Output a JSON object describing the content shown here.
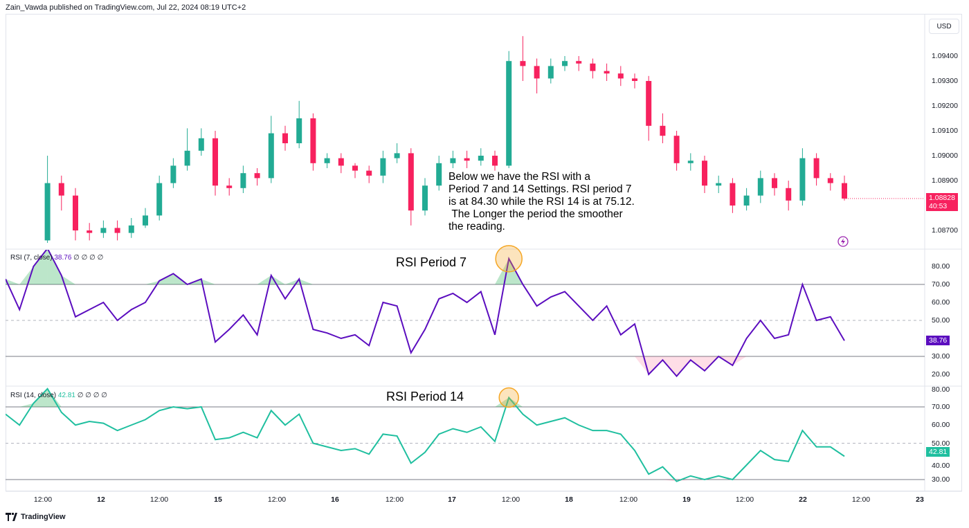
{
  "header": {
    "published": "Zain_Vawda published on TradingView.com, Jul 22, 2024 08:19 UTC+2"
  },
  "currency_button": "USD",
  "price_axis": {
    "ticks": [
      "1.09400",
      "1.09300",
      "1.09200",
      "1.09100",
      "1.09000",
      "1.08900",
      "1.08700"
    ],
    "last_price": "1.08828",
    "countdown": "40:53",
    "last_color": "#f7215e"
  },
  "annotation": "Below we have the RSI with a\nPeriod 7 and 14 Settings. RSI period 7\nis at 84.30 while the RSI 14 is at 75.12.\n The Longer the period the smoother\nthe reading.",
  "colors": {
    "up": "#22ab94",
    "down": "#f7215e",
    "rsi7": "#5b0dbf",
    "rsi14": "#1fbf9f",
    "highlight": "#f5a623"
  },
  "rsi7": {
    "legend": "RSI (7, close)",
    "value": "38.76",
    "zeros": "∅ ∅ ∅ ∅",
    "title": "RSI Period 7",
    "ticks": [
      "80.00",
      "70.00",
      "60.00",
      "50.00",
      "30.00",
      "20.00"
    ]
  },
  "rsi14": {
    "legend": "RSI (14, close)",
    "value": "42.81",
    "zeros": "∅ ∅ ∅ ∅",
    "title": "RSI Period 14",
    "ticks": [
      "80.00",
      "70.00",
      "60.00",
      "50.00",
      "40.00",
      "30.00"
    ]
  },
  "time_axis": [
    "12:00",
    "12",
    "12:00",
    "15",
    "12:00",
    "16",
    "12:00",
    "17",
    "12:00",
    "18",
    "12:00",
    "19",
    "12:00",
    "22",
    "12:00",
    "23"
  ],
  "footer": {
    "brand": "TradingView"
  },
  "chart_data": [
    {
      "type": "candlestick",
      "symbol_currency": "USD",
      "ylim": [
        1.0865,
        1.0948
      ],
      "first_open": 1.0866,
      "close": [
        1.0889,
        1.0884,
        1.087,
        1.0869,
        1.0871,
        1.0869,
        1.0872,
        1.0876,
        1.0889,
        1.0896,
        1.0902,
        1.0907,
        1.0888,
        1.0887,
        1.0893,
        1.0891,
        1.0909,
        1.0905,
        1.0915,
        1.0897,
        1.0899,
        1.0896,
        1.0894,
        1.0892,
        1.0899,
        1.0901,
        1.0878,
        1.0888,
        1.0897,
        1.0899,
        1.0898,
        1.09,
        1.0896,
        1.0938,
        1.0936,
        1.0931,
        1.0936,
        1.0938,
        1.0937,
        1.0934,
        1.0933,
        1.0931,
        1.093,
        1.0912,
        1.0908,
        1.0897,
        1.0898,
        1.0888,
        1.0889,
        1.088,
        1.0884,
        1.0891,
        1.0887,
        1.0882,
        1.0899,
        1.0891,
        1.0889,
        1.08828
      ],
      "high": [
        1.09,
        1.0892,
        1.0887,
        1.0873,
        1.0874,
        1.0874,
        1.0875,
        1.0879,
        1.0892,
        1.0899,
        1.0911,
        1.0911,
        1.091,
        1.0891,
        1.0896,
        1.0895,
        1.0916,
        1.0912,
        1.0922,
        1.0917,
        1.0901,
        1.0901,
        1.0897,
        1.0896,
        1.0902,
        1.0905,
        1.0903,
        1.0891,
        1.09,
        1.0902,
        1.0902,
        1.0903,
        1.0902,
        1.0942,
        1.0948,
        1.0939,
        1.0939,
        1.094,
        1.094,
        1.0939,
        1.0937,
        1.0936,
        1.0933,
        1.0932,
        1.0917,
        1.091,
        1.0901,
        1.09,
        1.0892,
        1.0891,
        1.0887,
        1.0894,
        1.0893,
        1.089,
        1.0903,
        1.0901,
        1.0893,
        1.0892
      ],
      "low": [
        1.0865,
        1.0878,
        1.0866,
        1.0866,
        1.0867,
        1.0866,
        1.0867,
        1.0871,
        1.0874,
        1.0887,
        1.0894,
        1.09,
        1.0884,
        1.0884,
        1.0885,
        1.0888,
        1.0889,
        1.0902,
        1.0903,
        1.0894,
        1.0895,
        1.0893,
        1.0891,
        1.0889,
        1.0889,
        1.0897,
        1.0872,
        1.0876,
        1.0886,
        1.0895,
        1.0895,
        1.0896,
        1.0894,
        1.0895,
        1.093,
        1.0925,
        1.0929,
        1.0934,
        1.0934,
        1.0931,
        1.093,
        1.0928,
        1.0927,
        1.0906,
        1.0905,
        1.0894,
        1.0894,
        1.0885,
        1.0885,
        1.0877,
        1.0878,
        1.0881,
        1.0884,
        1.0878,
        1.088,
        1.0888,
        1.0886,
        1.0882
      ]
    },
    {
      "type": "line",
      "name": "RSI (7, close)",
      "ylim": [
        15,
        85
      ],
      "levels": [
        70,
        50,
        30
      ],
      "values": [
        73,
        56,
        80,
        90,
        75,
        52,
        56,
        60,
        50,
        56,
        60,
        72,
        76,
        70,
        73,
        38,
        45,
        53,
        42,
        75,
        62,
        73,
        45,
        43,
        40,
        42,
        36,
        60,
        58,
        32,
        45,
        62,
        65,
        60,
        66,
        42,
        84.3,
        70,
        58,
        63,
        66,
        58,
        50,
        58,
        42,
        48,
        20,
        28,
        19,
        28,
        22,
        30,
        25,
        40,
        50,
        40,
        42,
        70,
        50,
        52,
        38.76
      ]
    },
    {
      "type": "line",
      "name": "RSI (14, close)",
      "ylim": [
        25,
        81
      ],
      "levels": [
        70,
        50,
        30
      ],
      "values": [
        66,
        60,
        72,
        80,
        67,
        60,
        62,
        61,
        57,
        60,
        63,
        68,
        70,
        69,
        70,
        52,
        53,
        56,
        53,
        68,
        60,
        66,
        50,
        48,
        46,
        47,
        44,
        55,
        54,
        39,
        45,
        55,
        58,
        56,
        59,
        51,
        75.12,
        66,
        60,
        62,
        64,
        60,
        57,
        57,
        55,
        46,
        33,
        37,
        29,
        32,
        30,
        32,
        30,
        38,
        46,
        41,
        40,
        57,
        48,
        48,
        42.81
      ]
    }
  ]
}
